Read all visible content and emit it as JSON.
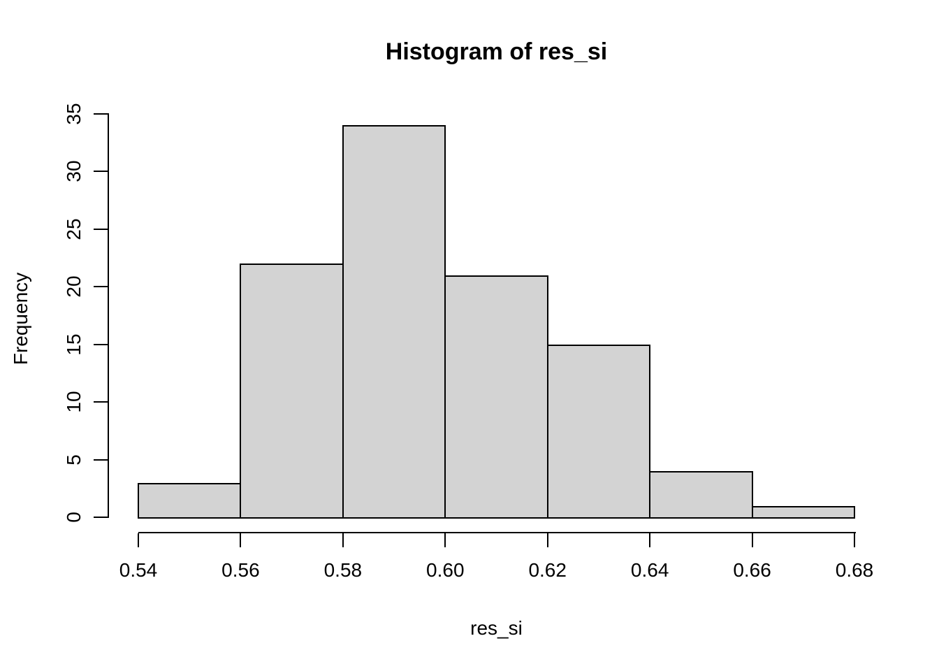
{
  "figure": {
    "background": "#ffffff",
    "text_color": "#000000"
  },
  "chart_data": {
    "type": "bar",
    "subtype": "histogram",
    "title": "Histogram of res_si",
    "xlabel": "res_si",
    "ylabel": "Frequency",
    "breaks": [
      0.54,
      0.56,
      0.58,
      0.6,
      0.62,
      0.64,
      0.66,
      0.68
    ],
    "counts": [
      3,
      22,
      34,
      21,
      15,
      4,
      1
    ],
    "x_tick_labels": [
      "0.54",
      "0.56",
      "0.58",
      "0.60",
      "0.62",
      "0.64",
      "0.66",
      "0.68"
    ],
    "y_tick_values": [
      0,
      5,
      10,
      15,
      20,
      25,
      30,
      35
    ],
    "y_tick_labels": [
      "0",
      "5",
      "10",
      "15",
      "20",
      "25",
      "30",
      "35"
    ],
    "xlim": [
      0.54,
      0.68
    ],
    "ylim": [
      0,
      35
    ],
    "grid": false,
    "legend": "none",
    "bar_fill": "#d3d3d3",
    "bar_border": "#000000",
    "axis_color": "#000000"
  }
}
